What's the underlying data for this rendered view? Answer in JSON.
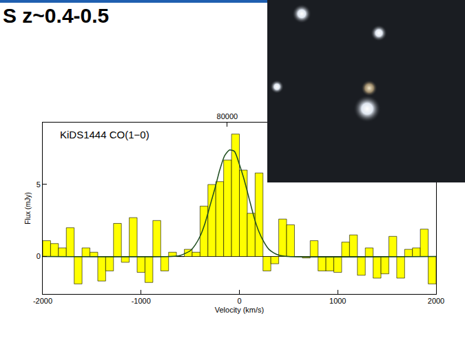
{
  "chart_data": {
    "type": "bar",
    "title": "S z~0.4-0.5",
    "annotation": "KiDS1444 CO(1−0)",
    "xlabel": "Velocity (km/s)",
    "ylabel": "Flux (mJy)",
    "x": [
      -1960,
      -1880,
      -1800,
      -1720,
      -1640,
      -1560,
      -1480,
      -1400,
      -1320,
      -1240,
      -1160,
      -1080,
      -1000,
      -920,
      -840,
      -760,
      -680,
      -600,
      -520,
      -440,
      -360,
      -280,
      -200,
      -120,
      -40,
      40,
      120,
      200,
      280,
      360,
      440,
      520,
      600,
      680,
      760,
      840,
      920,
      1000,
      1080,
      1160,
      1240,
      1320,
      1400,
      1480,
      1560,
      1640,
      1720,
      1800,
      1880,
      1960
    ],
    "values": [
      1.1,
      0.9,
      0.6,
      2.0,
      -1.9,
      0.6,
      0.3,
      -1.7,
      -1.0,
      2.3,
      -0.4,
      2.7,
      -1.1,
      -1.8,
      2.5,
      -1.0,
      0.3,
      0.0,
      0.5,
      0.3,
      3.5,
      5.0,
      5.2,
      6.7,
      8.5,
      6.0,
      3.0,
      5.8,
      -1.0,
      -0.5,
      2.6,
      2.2,
      0.0,
      -0.1,
      1.1,
      -1.0,
      -1.0,
      -1.1,
      1.0,
      1.5,
      -1.3,
      0.6,
      -1.5,
      -1.2,
      1.4,
      -1.5,
      0.5,
      0.6,
      1.9,
      -1.9
    ],
    "color": "#ffff00",
    "fit": {
      "type": "line",
      "color": "#1e4d1e",
      "x": [
        -2000,
        -700,
        -600,
        -500,
        -450,
        -400,
        -350,
        -300,
        -250,
        -200,
        -150,
        -100,
        -50,
        0,
        50,
        100,
        150,
        200,
        250,
        300,
        350,
        400,
        500,
        2000
      ],
      "values": [
        0,
        0,
        0.08,
        0.4,
        0.8,
        1.4,
        2.3,
        3.5,
        4.7,
        6.0,
        7.0,
        7.4,
        7.3,
        6.4,
        5.3,
        4.0,
        2.7,
        1.7,
        1.0,
        0.5,
        0.25,
        0.1,
        0,
        0
      ]
    },
    "xlim": [
      -2000,
      2000
    ],
    "xticks": [
      -2000,
      -1000,
      0,
      1000,
      2000
    ],
    "ylim": [
      -2.6,
      9.3
    ],
    "yticks": [
      0,
      5
    ],
    "x2lim": [
      80501,
      79433
    ],
    "x2ticks": [
      80000
    ],
    "grid": false
  }
}
